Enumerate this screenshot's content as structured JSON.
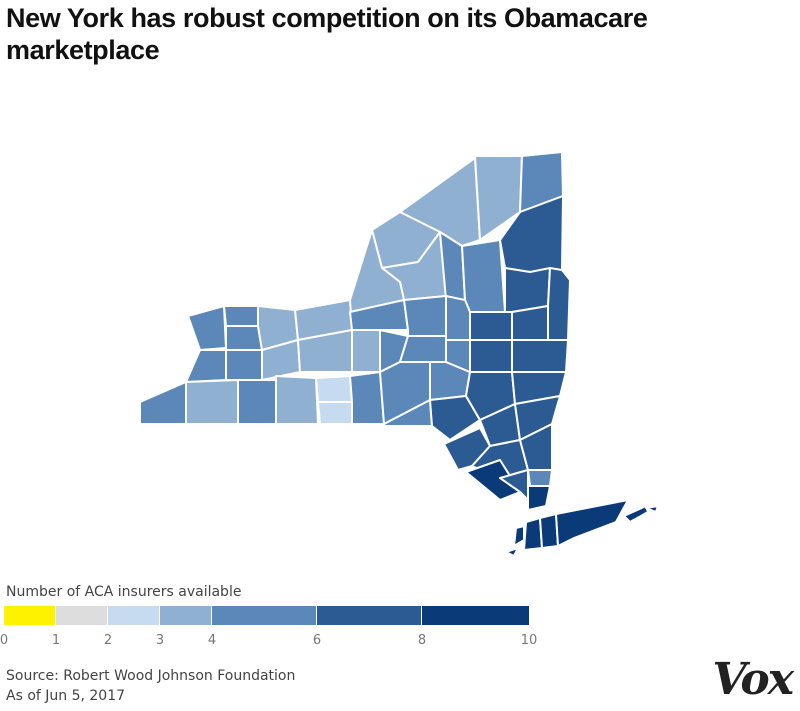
{
  "title": "New York has robust competition on its Obamacare marketplace",
  "legend": {
    "title": "Number of ACA insurers available",
    "bins": [
      {
        "from": 0,
        "to": 1,
        "color": "#fff200"
      },
      {
        "from": 1,
        "to": 2,
        "color": "#dddddd"
      },
      {
        "from": 2,
        "to": 3,
        "color": "#c6dbef"
      },
      {
        "from": 3,
        "to": 4,
        "color": "#8fb0d1"
      },
      {
        "from": 4,
        "to": 6,
        "color": "#5b88b8"
      },
      {
        "from": 6,
        "to": 8,
        "color": "#2c5b94"
      },
      {
        "from": 8,
        "to": 10,
        "color": "#0b3a78"
      }
    ],
    "ticks": [
      "0",
      "1",
      "2",
      "3",
      "4",
      "6",
      "8",
      "10"
    ]
  },
  "source": "Source: Robert Wood Johnson Foundation",
  "date": "As of Jun 5, 2017",
  "logo": "Vox",
  "colors": {
    "border": "#ffffff"
  }
}
